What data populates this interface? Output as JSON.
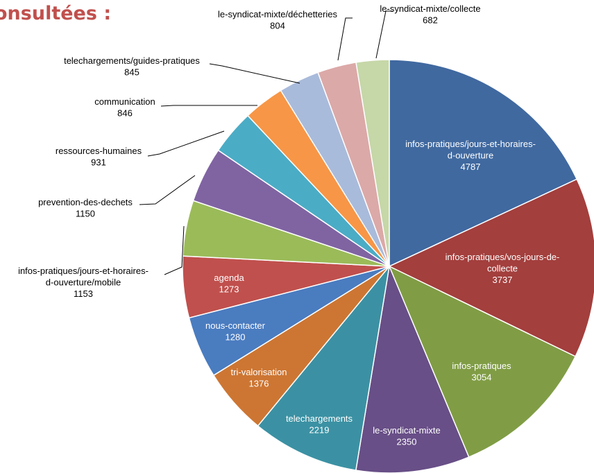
{
  "title": "onsultées :",
  "chart_data": {
    "type": "pie",
    "title": "onsultées :",
    "slices": [
      {
        "label": "infos-pratiques/jours-et-horaires-d-ouverture",
        "label_lines": [
          "infos-pratiques/jours-et-horaires-",
          "d-ouverture"
        ],
        "value": 4787,
        "color": "#4069a0",
        "inside": true
      },
      {
        "label": "infos-pratiques/vos-jours-de-collecte",
        "label_lines": [
          "infos-pratiques/vos-jours-de-",
          "collecte"
        ],
        "value": 3737,
        "color": "#a33f3d",
        "inside": true
      },
      {
        "label": "infos-pratiques",
        "label_lines": [
          "infos-pratiques"
        ],
        "value": 3054,
        "color": "#809d45",
        "inside": true
      },
      {
        "label": "le-syndicat-mixte",
        "label_lines": [
          "le-syndicat-mixte"
        ],
        "value": 2350,
        "color": "#684f87",
        "inside": true
      },
      {
        "label": "telechargements",
        "label_lines": [
          "telechargements"
        ],
        "value": 2219,
        "color": "#3b91a3",
        "inside": true
      },
      {
        "label": "tri-valorisation",
        "label_lines": [
          "tri-valorisation"
        ],
        "value": 1376,
        "color": "#cd7633",
        "inside": true
      },
      {
        "label": "nous-contacter",
        "label_lines": [
          "nous-contacter"
        ],
        "value": 1280,
        "color": "#4a7cc0",
        "inside": true
      },
      {
        "label": "agenda",
        "label_lines": [
          "agenda"
        ],
        "value": 1273,
        "color": "#c0504d",
        "inside": true
      },
      {
        "label": "infos-pratiques/jours-et-horaires-d-ouverture/mobile",
        "label_lines": [
          "infos-pratiques/jours-et-horaires-",
          "d-ouverture/mobile"
        ],
        "value": 1153,
        "color": "#9bbb59",
        "inside": false
      },
      {
        "label": "prevention-des-dechets",
        "label_lines": [
          "prevention-des-dechets"
        ],
        "value": 1150,
        "color": "#8064a2",
        "inside": false
      },
      {
        "label": "ressources-humaines",
        "label_lines": [
          "ressources-humaines"
        ],
        "value": 931,
        "color": "#4bacc6",
        "inside": false
      },
      {
        "label": "communication",
        "label_lines": [
          "communication"
        ],
        "value": 846,
        "color": "#f79646",
        "inside": false
      },
      {
        "label": "telechargements/guides-pratiques",
        "label_lines": [
          "telechargements/guides-pratiques"
        ],
        "value": 845,
        "color": "#a9bbdb",
        "inside": false
      },
      {
        "label": "le-syndicat-mixte/déchetteries",
        "label_lines": [
          "le-syndicat-mixte/déchetteries"
        ],
        "value": 804,
        "color": "#dba9a8",
        "inside": false
      },
      {
        "label": "le-syndicat-mixte/collecte",
        "label_lines": [
          "le-syndicat-mixte/collecte"
        ],
        "value": 682,
        "color": "#c6d7a8",
        "inside": false
      }
    ]
  }
}
